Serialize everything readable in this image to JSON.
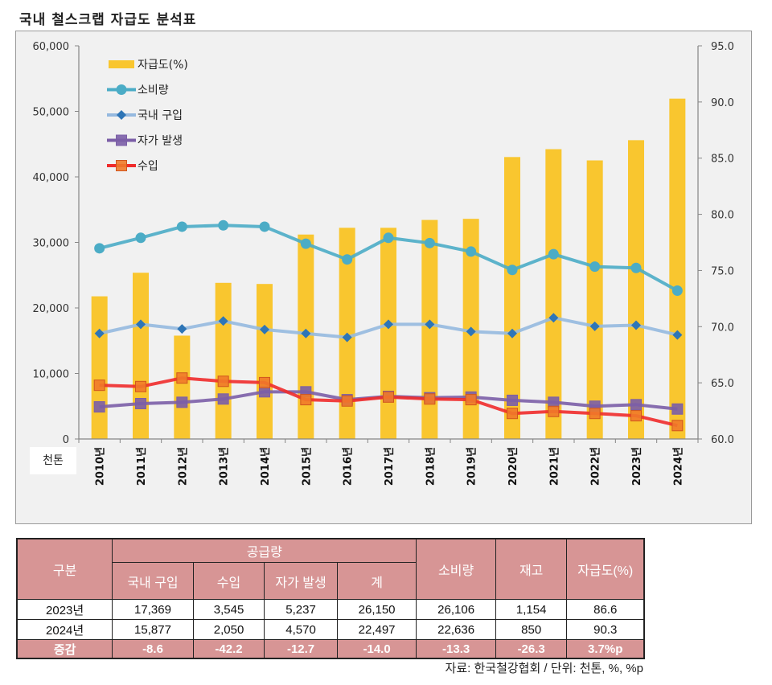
{
  "page_title": "국내 철스크랩 자급도 분석표",
  "unit_label": "천톤",
  "colors": {
    "self_sufficiency_bar": "#F9C62F",
    "consumption": "#4BACC6",
    "domestic_purchase_line": "#95B9DF",
    "domestic_purchase_marker": "#2E75B6",
    "self_generation": "#7B5EA7",
    "import": "#EF2B2B",
    "import_marker": "#F07A2A",
    "table_header": "#D79595"
  },
  "chart_data": {
    "type": "bar+line",
    "title": "국내 철스크랩 자급도 분석표",
    "categories": [
      "2010년",
      "2011년",
      "2012년",
      "2013년",
      "2014년",
      "2015년",
      "2016년",
      "2017년",
      "2018년",
      "2019년",
      "2020년",
      "2021년",
      "2022년",
      "2023년",
      "2024년"
    ],
    "left_axis": {
      "label": "천톤",
      "range": [
        0,
        60000
      ],
      "ticks": [
        "0",
        "10,000",
        "20,000",
        "30,000",
        "40,000",
        "50,000",
        "60,000"
      ],
      "tick_values": [
        0,
        10000,
        20000,
        30000,
        40000,
        50000,
        60000
      ]
    },
    "right_axis": {
      "label": "",
      "range": [
        60,
        95
      ],
      "ticks": [
        "60.0",
        "65.0",
        "70.0",
        "75.0",
        "80.0",
        "85.0",
        "90.0",
        "95.0"
      ],
      "tick_values": [
        60,
        65,
        70,
        75,
        80,
        85,
        90,
        95
      ]
    },
    "grid": false,
    "legend_position": "top-left",
    "series": [
      {
        "name": "자급도(%)",
        "type": "bar",
        "axis": "right",
        "values": [
          72.7,
          74.8,
          69.2,
          73.9,
          73.8,
          78.2,
          78.8,
          78.8,
          79.5,
          79.6,
          85.1,
          85.8,
          84.8,
          86.6,
          90.3
        ]
      },
      {
        "name": "소비량",
        "type": "line",
        "marker": "circle",
        "axis": "left",
        "values": [
          29100,
          30700,
          32400,
          32600,
          32400,
          29800,
          27400,
          30700,
          29900,
          28600,
          25800,
          28200,
          26300,
          26106,
          22636
        ]
      },
      {
        "name": "국내 구입",
        "type": "line",
        "marker": "diamond",
        "axis": "left",
        "values": [
          16100,
          17500,
          16800,
          18000,
          16700,
          16100,
          15500,
          17500,
          17500,
          16400,
          16100,
          18500,
          17200,
          17369,
          15877
        ]
      },
      {
        "name": "자가 발생",
        "type": "line",
        "marker": "square",
        "axis": "left",
        "values": [
          4900,
          5400,
          5600,
          6100,
          7200,
          7200,
          6000,
          6500,
          6300,
          6400,
          5900,
          5600,
          5000,
          5237,
          4570
        ]
      },
      {
        "name": "수입",
        "type": "line",
        "marker": "square",
        "axis": "left",
        "values": [
          8200,
          8000,
          9300,
          8800,
          8600,
          6000,
          5800,
          6400,
          6100,
          6000,
          3900,
          4200,
          3900,
          3545,
          2050
        ]
      }
    ]
  },
  "table": {
    "header_group": "공급량",
    "col_category": "구분",
    "supply_cols": [
      "국내 구입",
      "수입",
      "자가 발생",
      "계"
    ],
    "other_cols": [
      "소비량",
      "재고",
      "자급도(%)"
    ],
    "rows": [
      {
        "label": "2023년",
        "values": [
          "17,369",
          "3,545",
          "5,237",
          "26,150",
          "26,106",
          "1,154",
          "86.6"
        ]
      },
      {
        "label": "2024년",
        "values": [
          "15,877",
          "2,050",
          "4,570",
          "22,497",
          "22,636",
          "850",
          "90.3"
        ]
      }
    ],
    "change_row": {
      "label": "증감",
      "values": [
        "-8.6",
        "-42.2",
        "-12.7",
        "-14.0",
        "-13.3",
        "-26.3",
        "3.7%p"
      ]
    }
  },
  "source_note": "자료: 한국철강협회 / 단위: 천톤, %, %p"
}
